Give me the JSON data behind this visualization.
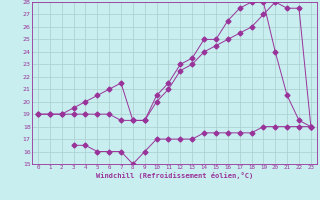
{
  "xlabel": "Windchill (Refroidissement éolien,°C)",
  "background_color": "#c8eef0",
  "grid_color": "#aacccc",
  "line_color": "#993399",
  "xlim": [
    -0.5,
    23.5
  ],
  "ylim": [
    15,
    28
  ],
  "xticks": [
    0,
    1,
    2,
    3,
    4,
    5,
    6,
    7,
    8,
    9,
    10,
    11,
    12,
    13,
    14,
    15,
    16,
    17,
    18,
    19,
    20,
    21,
    22,
    23
  ],
  "yticks": [
    15,
    16,
    17,
    18,
    19,
    20,
    21,
    22,
    23,
    24,
    25,
    26,
    27,
    28
  ],
  "line1_x": [
    0,
    1,
    2,
    3,
    4,
    5,
    6,
    7,
    8,
    9,
    10,
    11,
    12,
    13,
    14,
    15,
    16,
    17,
    18,
    19,
    20,
    21,
    22,
    23
  ],
  "line1_y": [
    19,
    19,
    19,
    19.5,
    20,
    20.5,
    21,
    21.5,
    18.5,
    18.5,
    20.5,
    21.5,
    23,
    23.5,
    25,
    25,
    26.5,
    27.5,
    28,
    28,
    24,
    20.5,
    18.5,
    18
  ],
  "line2_x": [
    0,
    1,
    2,
    3,
    4,
    5,
    6,
    7,
    8,
    9,
    10,
    11,
    12,
    13,
    14,
    15,
    16,
    17,
    18,
    19,
    20,
    21,
    22,
    23
  ],
  "line2_y": [
    19,
    19,
    19,
    19,
    19,
    19,
    19,
    18.5,
    18.5,
    18.5,
    20,
    21,
    22.5,
    23,
    24,
    24.5,
    25,
    25.5,
    26,
    27,
    28,
    27.5,
    27.5,
    18
  ],
  "line3_x": [
    3,
    4,
    5,
    6,
    7,
    8,
    9,
    10,
    11,
    12,
    13,
    14,
    15,
    16,
    17,
    18,
    19,
    20,
    21,
    22,
    23
  ],
  "line3_y": [
    16.5,
    16.5,
    16,
    16,
    16,
    15,
    16,
    17,
    17,
    17,
    17,
    17.5,
    17.5,
    17.5,
    17.5,
    17.5,
    18,
    18,
    18,
    18,
    18
  ]
}
